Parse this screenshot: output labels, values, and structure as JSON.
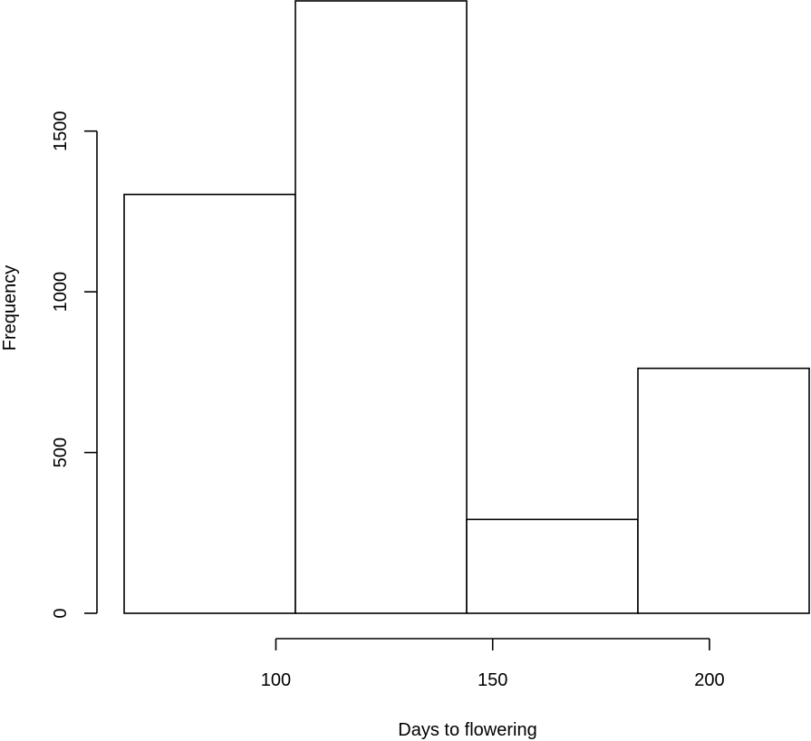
{
  "chart_data": {
    "type": "bar",
    "title": "",
    "xlabel": "Days to flowering",
    "ylabel": "Frequency",
    "bins": [
      {
        "start": 65,
        "end": 104.5,
        "value": 1303
      },
      {
        "start": 104.5,
        "end": 144,
        "value": 1905
      },
      {
        "start": 144,
        "end": 183.5,
        "value": 292
      },
      {
        "start": 183.5,
        "end": 223,
        "value": 762
      }
    ],
    "xlim": [
      65,
      223
    ],
    "ylim": [
      0,
      1905
    ],
    "x_ticks": [
      100,
      150,
      200
    ],
    "x_tick_labels": [
      "100",
      "150",
      "200"
    ],
    "y_ticks": [
      0,
      500,
      1000,
      1500
    ],
    "y_tick_labels": [
      "0",
      "500",
      "1000",
      "1500"
    ],
    "grid": false,
    "legend": "none",
    "colors": {
      "bar_fill": "#ffffff",
      "bar_stroke": "#000000"
    }
  }
}
